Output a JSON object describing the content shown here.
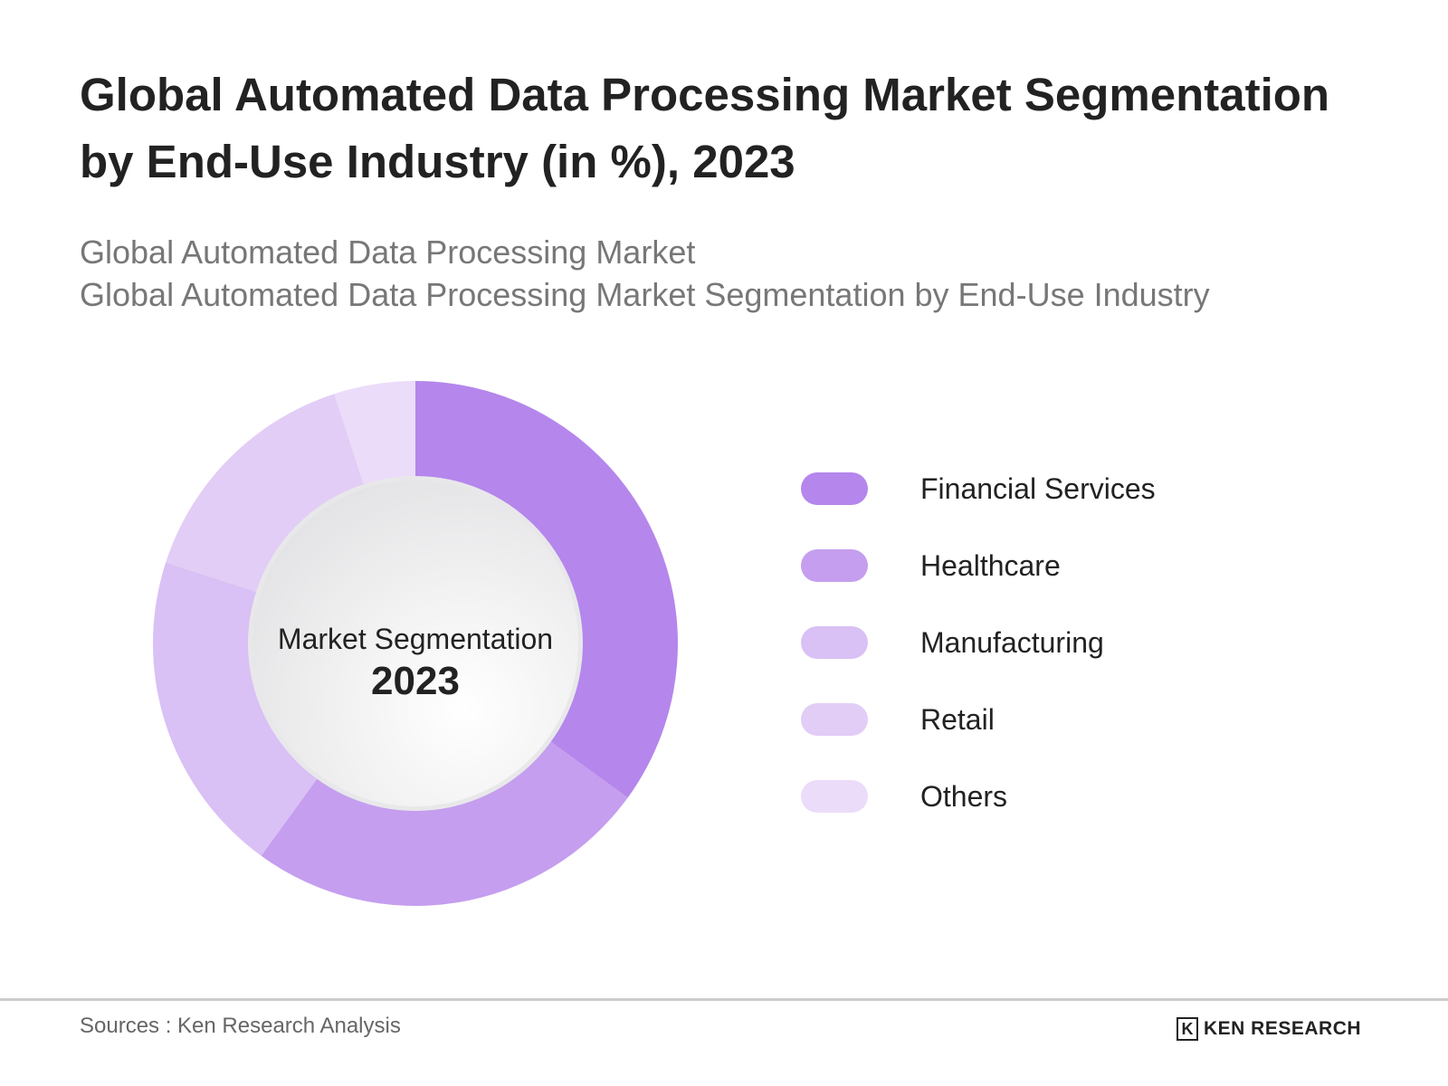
{
  "chart_data": {
    "type": "pie",
    "variant": "donut",
    "title": "Global Automated Data Processing Market Segmentation by End-Use Industry (in %), 2023",
    "subtitle_lines": [
      "Global Automated Data Processing Market",
      "Global Automated Data Processing Market Segmentation by End-Use Industry"
    ],
    "center_label": "Market Segmentation",
    "center_year": "2023",
    "categories": [
      "Financial Services",
      "Healthcare",
      "Manufacturing",
      "Retail",
      "Others"
    ],
    "values": [
      35,
      25,
      20,
      15,
      5
    ],
    "colors": [
      "#b586ec",
      "#c59eef",
      "#d9c0f5",
      "#e2cdf6",
      "#ebdcf9"
    ],
    "legend_position": "right"
  },
  "footer": {
    "source": "Sources : Ken Research Analysis",
    "logo_text": "KEN RESEARCH"
  }
}
